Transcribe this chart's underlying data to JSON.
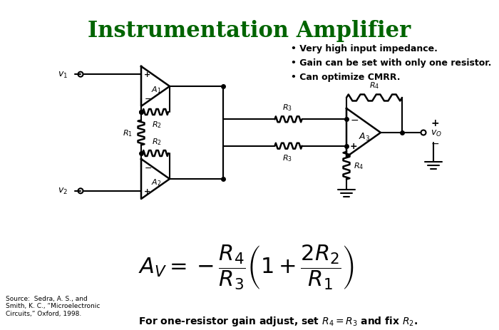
{
  "title": "Instrumentation Amplifier",
  "title_color": "#006400",
  "title_fontsize": 22,
  "background_color": "#ffffff",
  "bullet_points": [
    "• Very high input impedance.",
    "• Gain can be set with only one resistor.",
    "• Can optimize CMRR."
  ],
  "source_text": "Source:  Sedra, A. S., and\nSmith, K. C., “Microelectronic\nCircuits,” Oxford, 1998.",
  "fig_width": 7.0,
  "fig_height": 4.64,
  "dpi": 100
}
